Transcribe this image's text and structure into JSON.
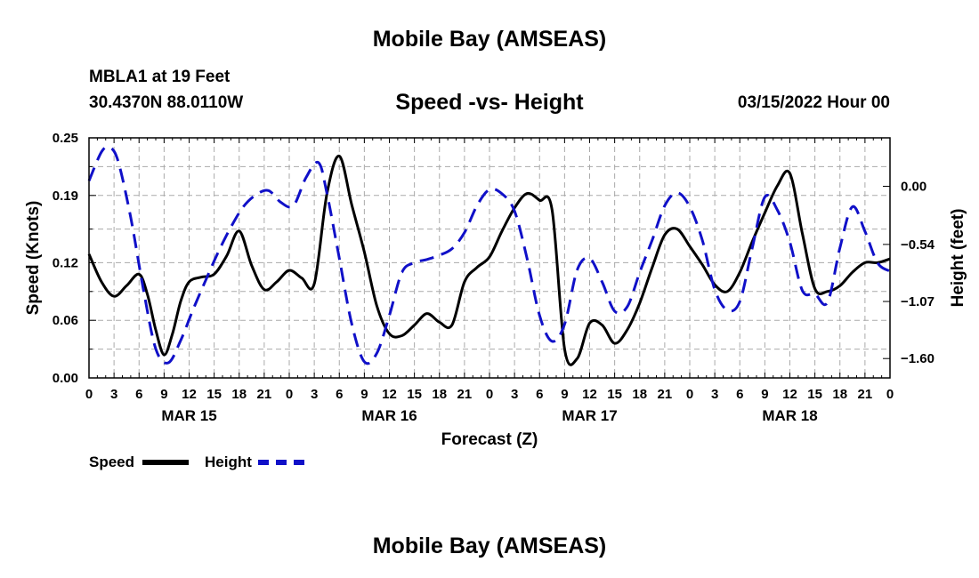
{
  "page": {
    "title_top": "Mobile Bay (AMSEAS)",
    "title_bottom": "Mobile Bay (AMSEAS)",
    "station": "MBLA1 at 19 Feet",
    "coords": "30.4370N  88.0110W",
    "subtitle": "Speed -vs- Height",
    "datetime": "03/15/2022 Hour 00"
  },
  "legend": {
    "speed": "Speed",
    "height": "Height"
  },
  "colors": {
    "speed": "#000000",
    "height": "#1010c8",
    "grid": "#aaaaaa"
  },
  "chart_data": {
    "type": "line",
    "title": "Speed -vs- Height",
    "xlabel": "Forecast (Z)",
    "ylabel": "Speed (Knots)",
    "y2label": "Height (feet)",
    "xlim": [
      0,
      96
    ],
    "ylim": [
      0,
      0.25
    ],
    "y2lim": [
      -1.78,
      0.45
    ],
    "y_ticks": [
      0.0,
      0.06,
      0.12,
      0.19,
      0.25
    ],
    "y_tick_labels": [
      "0.00",
      "0.06",
      "0.12",
      "0.19",
      "0.25"
    ],
    "y2_ticks": [
      0.0,
      -0.54,
      -1.07,
      -1.6
    ],
    "y2_tick_labels": [
      "0.00",
      "−0.54",
      "−1.07",
      "−1.60"
    ],
    "x_ticks": [
      0,
      3,
      6,
      9,
      12,
      15,
      18,
      21,
      24,
      27,
      30,
      33,
      36,
      39,
      42,
      45,
      48,
      51,
      54,
      57,
      60,
      63,
      66,
      69,
      72,
      75,
      78,
      81,
      84,
      87,
      90,
      93,
      96
    ],
    "x_tick_labels": [
      "0",
      "3",
      "6",
      "9",
      "12",
      "15",
      "18",
      "21",
      "0",
      "3",
      "6",
      "9",
      "12",
      "15",
      "18",
      "21",
      "0",
      "3",
      "6",
      "9",
      "12",
      "15",
      "18",
      "21",
      "0",
      "3",
      "6",
      "9",
      "12",
      "15",
      "18",
      "21",
      "0"
    ],
    "day_labels": [
      {
        "x": 12,
        "label": "MAR 15"
      },
      {
        "x": 36,
        "label": "MAR 16"
      },
      {
        "x": 60,
        "label": "MAR 17"
      },
      {
        "x": 84,
        "label": "MAR 18"
      }
    ],
    "grid": true,
    "series": [
      {
        "name": "Speed",
        "axis": "left",
        "style": "solid",
        "x": [
          0,
          1.5,
          3,
          4.5,
          6,
          7,
          8,
          9,
          10,
          11,
          12,
          13.5,
          15,
          16.5,
          18,
          19.5,
          21,
          22.5,
          24,
          25.5,
          27,
          28.5,
          30,
          31.5,
          33,
          34.5,
          36,
          37.5,
          39,
          40.5,
          42,
          43.5,
          45,
          46.5,
          48,
          49.5,
          51,
          52.5,
          54,
          55.5,
          57,
          58.5,
          60,
          61.5,
          63,
          64.5,
          66,
          67.5,
          69,
          70.5,
          72,
          73.5,
          75,
          76.5,
          78,
          79.5,
          81,
          82.5,
          84,
          85.5,
          87,
          88.5,
          90,
          91.5,
          93,
          94.5,
          96
        ],
        "values": [
          0.129,
          0.1,
          0.085,
          0.096,
          0.108,
          0.087,
          0.05,
          0.024,
          0.046,
          0.08,
          0.1,
          0.105,
          0.108,
          0.127,
          0.153,
          0.117,
          0.092,
          0.1,
          0.112,
          0.104,
          0.098,
          0.191,
          0.231,
          0.18,
          0.131,
          0.075,
          0.046,
          0.044,
          0.055,
          0.067,
          0.058,
          0.055,
          0.1,
          0.115,
          0.126,
          0.153,
          0.177,
          0.192,
          0.185,
          0.175,
          0.03,
          0.02,
          0.057,
          0.055,
          0.036,
          0.05,
          0.078,
          0.115,
          0.149,
          0.155,
          0.137,
          0.118,
          0.097,
          0.09,
          0.11,
          0.142,
          0.172,
          0.2,
          0.213,
          0.15,
          0.093,
          0.09,
          0.096,
          0.11,
          0.12,
          0.12,
          0.124
        ],
        "values_note": "Speed values in knots read from left axis"
      },
      {
        "name": "Height",
        "axis": "right",
        "style": "dashed",
        "x": [
          0,
          1.5,
          2.5,
          3.5,
          5,
          6.5,
          8,
          9.5,
          11,
          12.5,
          14,
          15.5,
          17,
          18.5,
          20,
          21.5,
          23,
          24.5,
          26,
          27.5,
          28.5,
          30,
          31.5,
          33,
          34.5,
          36,
          37.5,
          39,
          40.5,
          42,
          43.5,
          45,
          46.5,
          48,
          49.5,
          51,
          52.5,
          54,
          55.5,
          57,
          58.5,
          60,
          61.5,
          63,
          64.5,
          66,
          67.5,
          69,
          70.5,
          72,
          73.5,
          75,
          76.5,
          78,
          79.5,
          81,
          82.5,
          84,
          85.5,
          87,
          88.5,
          90,
          91.5,
          93,
          94.5,
          96
        ],
        "values": [
          0.05,
          0.32,
          0.36,
          0.23,
          -0.29,
          -0.95,
          -1.51,
          -1.64,
          -1.43,
          -1.14,
          -0.87,
          -0.61,
          -0.38,
          -0.19,
          -0.08,
          -0.04,
          -0.15,
          -0.18,
          0.08,
          0.22,
          -0.06,
          -0.67,
          -1.28,
          -1.63,
          -1.55,
          -1.2,
          -0.8,
          -0.71,
          -0.68,
          -0.64,
          -0.58,
          -0.43,
          -0.18,
          -0.03,
          -0.07,
          -0.23,
          -0.67,
          -1.2,
          -1.44,
          -1.28,
          -0.78,
          -0.67,
          -0.89,
          -1.16,
          -1.12,
          -0.8,
          -0.5,
          -0.18,
          -0.06,
          -0.19,
          -0.5,
          -0.96,
          -1.15,
          -1.07,
          -0.57,
          -0.1,
          -0.22,
          -0.52,
          -0.97,
          -1.0,
          -1.08,
          -0.57,
          -0.19,
          -0.42,
          -0.71,
          -0.79
        ],
        "values_note": "Height values in feet read from right axis"
      }
    ]
  }
}
